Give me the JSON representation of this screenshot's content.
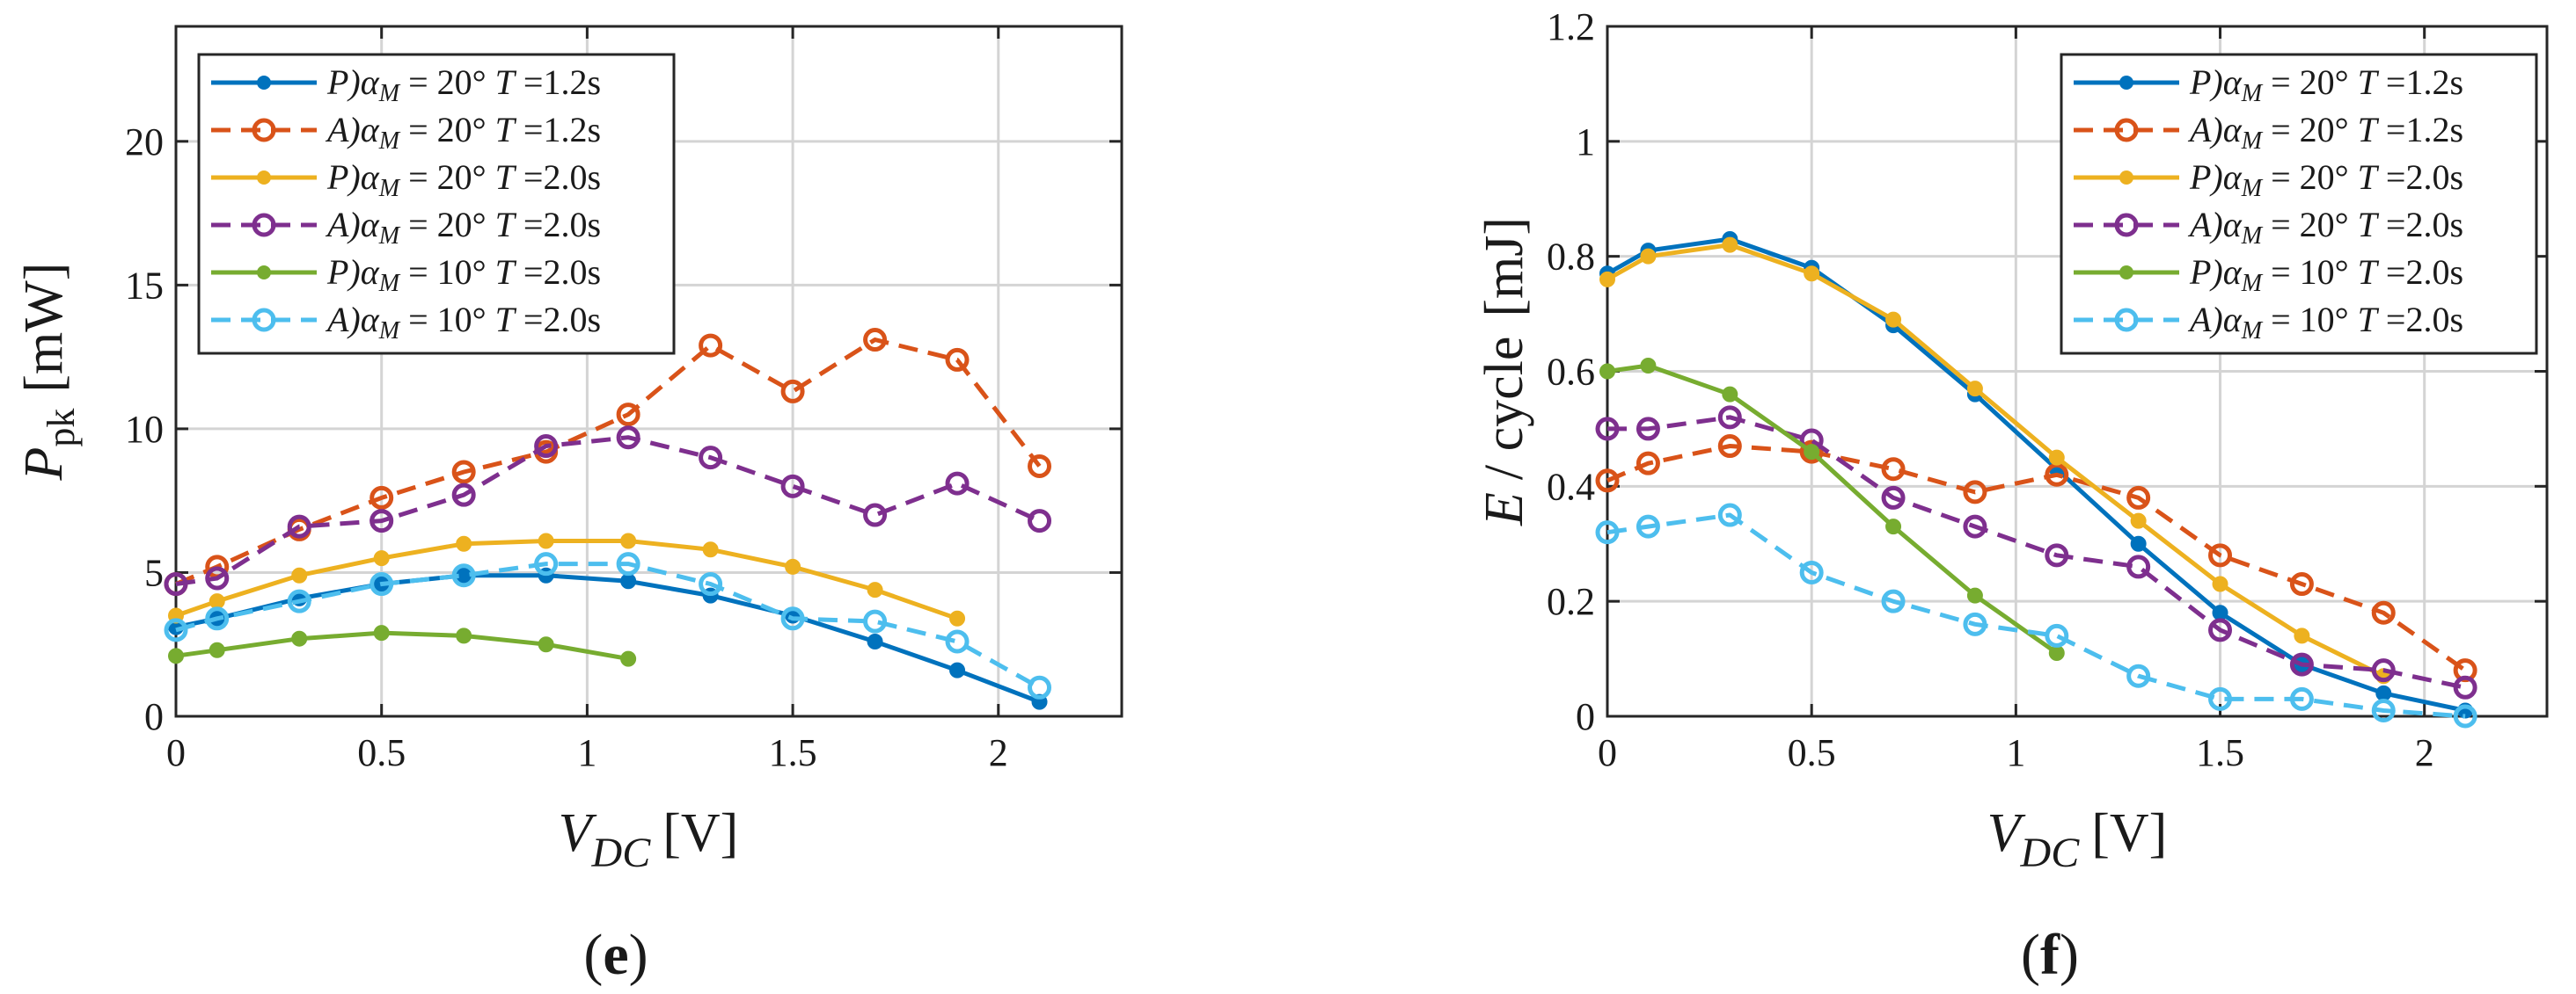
{
  "figure": {
    "charts": [
      {
        "id": "e",
        "caption": {
          "open": "(",
          "letter": "e",
          "close": ")"
        },
        "ylabel": {
          "main": "P",
          "sub": "pk",
          "unit": "[mW]"
        },
        "xlabel": {
          "main": "V",
          "sub": "DC",
          "unit": "[V]"
        }
      },
      {
        "id": "f",
        "caption": {
          "open": "(",
          "letter": "f",
          "close": ")"
        },
        "ylabel": {
          "main": "E",
          "rest": "/ cycle",
          "unit": "[mJ]"
        },
        "xlabel": {
          "main": "V",
          "sub": "DC",
          "unit": "[V]"
        }
      }
    ]
  },
  "chart_data": [
    {
      "type": "line",
      "title": "(e)",
      "xlabel": "V_DC [V]",
      "ylabel": "P_pk [mW]",
      "xlim": [
        0,
        2.3
      ],
      "ylim": [
        0,
        24
      ],
      "xticks": [
        0,
        0.5,
        1,
        1.5,
        2
      ],
      "xtick_labels": [
        "0",
        "0.5",
        "1",
        "1.5",
        "2"
      ],
      "yticks": [
        0,
        5,
        10,
        15,
        20
      ],
      "ytick_labels": [
        "0",
        "5",
        "10",
        "15",
        "20"
      ],
      "grid": true,
      "legend_position": "top-left",
      "series": [
        {
          "name": "P)αM = 20° T =1.2s",
          "legend": {
            "prefix": "P)",
            "alpha": "α",
            "sub": "M",
            "rest": " = 20° ",
            "t": "T",
            "trest": " =1.2s"
          },
          "style": "solid",
          "marker": "filled",
          "color": "#0072BD",
          "x": [
            0,
            0.1,
            0.3,
            0.5,
            0.7,
            0.9,
            1.1,
            1.3,
            1.5,
            1.7,
            1.9,
            2.1
          ],
          "y": [
            3.1,
            3.4,
            4.1,
            4.6,
            4.9,
            4.9,
            4.7,
            4.2,
            3.5,
            2.6,
            1.6,
            0.5
          ]
        },
        {
          "name": "A)αM = 20° T =1.2s",
          "legend": {
            "prefix": "A)",
            "alpha": "α",
            "sub": "M",
            "rest": " = 20° ",
            "t": "T",
            "trest": " =1.2s"
          },
          "style": "dashed",
          "marker": "open",
          "color": "#D95319",
          "x": [
            0,
            0.1,
            0.3,
            0.5,
            0.7,
            0.9,
            1.1,
            1.3,
            1.5,
            1.7,
            1.9,
            2.1
          ],
          "y": [
            4.6,
            5.2,
            6.5,
            7.6,
            8.5,
            9.2,
            10.5,
            12.9,
            11.3,
            13.1,
            12.4,
            8.7
          ]
        },
        {
          "name": "P)αM = 20° T =2.0s",
          "legend": {
            "prefix": "P)",
            "alpha": "α",
            "sub": "M",
            "rest": " = 20° ",
            "t": "T",
            "trest": " =2.0s"
          },
          "style": "solid",
          "marker": "filled",
          "color": "#EDB120",
          "x": [
            0,
            0.1,
            0.3,
            0.5,
            0.7,
            0.9,
            1.1,
            1.3,
            1.5,
            1.7,
            1.9
          ],
          "y": [
            3.5,
            4.0,
            4.9,
            5.5,
            6.0,
            6.1,
            6.1,
            5.8,
            5.2,
            4.4,
            3.4
          ]
        },
        {
          "name": "A)αM = 20° T =2.0s",
          "legend": {
            "prefix": "A)",
            "alpha": "α",
            "sub": "M",
            "rest": " = 20° ",
            "t": "T",
            "trest": " =2.0s"
          },
          "style": "dashed",
          "marker": "open",
          "color": "#7E2F8E",
          "x": [
            0,
            0.1,
            0.3,
            0.5,
            0.7,
            0.9,
            1.1,
            1.3,
            1.5,
            1.7,
            1.9,
            2.1
          ],
          "y": [
            4.6,
            4.8,
            6.6,
            6.8,
            7.7,
            9.4,
            9.7,
            9.0,
            8.0,
            7.0,
            8.1,
            6.8
          ]
        },
        {
          "name": "P)αM = 10° T =2.0s",
          "legend": {
            "prefix": "P)",
            "alpha": "α",
            "sub": "M",
            "rest": " = 10° ",
            "t": "T",
            "trest": " =2.0s"
          },
          "style": "solid",
          "marker": "filled",
          "color": "#77AC30",
          "x": [
            0,
            0.1,
            0.3,
            0.5,
            0.7,
            0.9,
            1.1
          ],
          "y": [
            2.1,
            2.3,
            2.7,
            2.9,
            2.8,
            2.5,
            2.0
          ]
        },
        {
          "name": "A)αM = 10° T =2.0s",
          "legend": {
            "prefix": "A)",
            "alpha": "α",
            "sub": "M",
            "rest": " = 10° ",
            "t": "T",
            "trest": " =2.0s"
          },
          "style": "dashed",
          "marker": "open",
          "color": "#4DBEEE",
          "x": [
            0,
            0.1,
            0.3,
            0.5,
            0.7,
            0.9,
            1.1,
            1.3,
            1.5,
            1.7,
            1.9,
            2.1
          ],
          "y": [
            3.0,
            3.4,
            4.0,
            4.6,
            4.9,
            5.3,
            5.3,
            4.6,
            3.4,
            3.3,
            2.6,
            1.0
          ]
        }
      ]
    },
    {
      "type": "line",
      "title": "(f)",
      "xlabel": "V_DC [V]",
      "ylabel": "E / cycle [mJ]",
      "xlim": [
        0,
        2.3
      ],
      "ylim": [
        0,
        1.2
      ],
      "xticks": [
        0,
        0.5,
        1,
        1.5,
        2
      ],
      "xtick_labels": [
        "0",
        "0.5",
        "1",
        "1.5",
        "2"
      ],
      "yticks": [
        0,
        0.2,
        0.4,
        0.6,
        0.8,
        1,
        1.2
      ],
      "ytick_labels": [
        "0",
        "0.2",
        "0.4",
        "0.6",
        "0.8",
        "1",
        "1.2"
      ],
      "grid": true,
      "legend_position": "top-right",
      "series": [
        {
          "name": "P)αM = 20° T =1.2s",
          "legend": {
            "prefix": "P)",
            "alpha": "α",
            "sub": "M",
            "rest": " = 20° ",
            "t": "T",
            "trest": " =1.2s"
          },
          "style": "solid",
          "marker": "filled",
          "color": "#0072BD",
          "x": [
            0,
            0.1,
            0.3,
            0.5,
            0.7,
            0.9,
            1.1,
            1.3,
            1.5,
            1.7,
            1.9,
            2.1
          ],
          "y": [
            0.77,
            0.81,
            0.83,
            0.78,
            0.68,
            0.56,
            0.43,
            0.3,
            0.18,
            0.09,
            0.04,
            0.01
          ]
        },
        {
          "name": "A)αM = 20° T =1.2s",
          "legend": {
            "prefix": "A)",
            "alpha": "α",
            "sub": "M",
            "rest": " = 20° ",
            "t": "T",
            "trest": " =1.2s"
          },
          "style": "dashed",
          "marker": "open",
          "color": "#D95319",
          "x": [
            0,
            0.1,
            0.3,
            0.5,
            0.7,
            0.9,
            1.1,
            1.3,
            1.5,
            1.7,
            1.9,
            2.1
          ],
          "y": [
            0.41,
            0.44,
            0.47,
            0.46,
            0.43,
            0.39,
            0.42,
            0.38,
            0.28,
            0.23,
            0.18,
            0.08
          ]
        },
        {
          "name": "P)αM = 20° T =2.0s",
          "legend": {
            "prefix": "P)",
            "alpha": "α",
            "sub": "M",
            "rest": " = 20° ",
            "t": "T",
            "trest": " =2.0s"
          },
          "style": "solid",
          "marker": "filled",
          "color": "#EDB120",
          "x": [
            0,
            0.1,
            0.3,
            0.5,
            0.7,
            0.9,
            1.1,
            1.3,
            1.5,
            1.7,
            1.9
          ],
          "y": [
            0.76,
            0.8,
            0.82,
            0.77,
            0.69,
            0.57,
            0.45,
            0.34,
            0.23,
            0.14,
            0.07
          ]
        },
        {
          "name": "A)αM = 20° T =2.0s",
          "legend": {
            "prefix": "A)",
            "alpha": "α",
            "sub": "M",
            "rest": " = 20° ",
            "t": "T",
            "trest": " =2.0s"
          },
          "style": "dashed",
          "marker": "open",
          "color": "#7E2F8E",
          "x": [
            0,
            0.1,
            0.3,
            0.5,
            0.7,
            0.9,
            1.1,
            1.3,
            1.5,
            1.7,
            1.9,
            2.1
          ],
          "y": [
            0.5,
            0.5,
            0.52,
            0.48,
            0.38,
            0.33,
            0.28,
            0.26,
            0.15,
            0.09,
            0.08,
            0.05
          ]
        },
        {
          "name": "P)αM = 10° T =2.0s",
          "legend": {
            "prefix": "P)",
            "alpha": "α",
            "sub": "M",
            "rest": " = 10° ",
            "t": "T",
            "trest": " =2.0s"
          },
          "style": "solid",
          "marker": "filled",
          "color": "#77AC30",
          "x": [
            0,
            0.1,
            0.3,
            0.5,
            0.7,
            0.9,
            1.1
          ],
          "y": [
            0.6,
            0.61,
            0.56,
            0.46,
            0.33,
            0.21,
            0.11
          ]
        },
        {
          "name": "A)αM = 10° T =2.0s",
          "legend": {
            "prefix": "A)",
            "alpha": "α",
            "sub": "M",
            "rest": " = 10° ",
            "t": "T",
            "trest": " =2.0s"
          },
          "style": "dashed",
          "marker": "open",
          "color": "#4DBEEE",
          "x": [
            0,
            0.1,
            0.3,
            0.5,
            0.7,
            0.9,
            1.1,
            1.3,
            1.5,
            1.7,
            1.9,
            2.1
          ],
          "y": [
            0.32,
            0.33,
            0.35,
            0.25,
            0.2,
            0.16,
            0.14,
            0.07,
            0.03,
            0.03,
            0.01,
            0.0
          ]
        }
      ]
    }
  ]
}
